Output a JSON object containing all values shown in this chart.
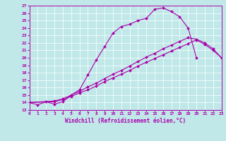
{
  "xlabel": "Windchill (Refroidissement éolien,°C)",
  "bg_color": "#c0e8e8",
  "line_color": "#aa00aa",
  "grid_color": "#ffffff",
  "xlim": [
    0,
    23
  ],
  "ylim": [
    13,
    27
  ],
  "xticks": [
    0,
    1,
    2,
    3,
    4,
    5,
    6,
    7,
    8,
    9,
    10,
    11,
    12,
    13,
    14,
    15,
    16,
    17,
    18,
    19,
    20,
    21,
    22,
    23
  ],
  "yticks": [
    13,
    14,
    15,
    16,
    17,
    18,
    19,
    20,
    21,
    22,
    23,
    24,
    25,
    26,
    27
  ],
  "curves": [
    {
      "x": [
        0,
        1,
        2,
        3,
        4,
        5,
        6,
        7,
        8,
        9,
        10,
        11,
        12,
        13,
        14,
        15,
        16,
        17,
        18,
        19,
        20
      ],
      "y": [
        14,
        13.7,
        14.1,
        13.8,
        14.1,
        15.0,
        15.7,
        17.7,
        19.7,
        21.5,
        23.3,
        24.2,
        24.5,
        25.0,
        25.3,
        26.5,
        26.7,
        26.2,
        25.5,
        24.0,
        20.0
      ]
    },
    {
      "x": [
        0,
        3,
        4,
        5,
        6,
        7,
        8,
        9,
        10,
        11,
        12,
        13,
        14,
        15,
        16,
        17,
        18,
        19,
        20,
        21,
        22,
        23
      ],
      "y": [
        14.0,
        14.2,
        14.5,
        15.0,
        15.5,
        16.1,
        16.6,
        17.2,
        17.8,
        18.3,
        18.9,
        19.5,
        20.1,
        20.6,
        21.2,
        21.7,
        22.2,
        22.7,
        22.5,
        22.0,
        21.2,
        20.0
      ]
    },
    {
      "x": [
        0,
        3,
        4,
        5,
        6,
        7,
        8,
        9,
        10,
        11,
        12,
        13,
        14,
        15,
        16,
        17,
        18,
        19,
        20,
        21,
        22,
        23
      ],
      "y": [
        14.0,
        14.1,
        14.4,
        14.8,
        15.3,
        15.7,
        16.2,
        16.8,
        17.3,
        17.8,
        18.3,
        18.9,
        19.4,
        19.9,
        20.4,
        20.9,
        21.4,
        21.9,
        22.4,
        21.8,
        21.0,
        20.0
      ]
    }
  ]
}
